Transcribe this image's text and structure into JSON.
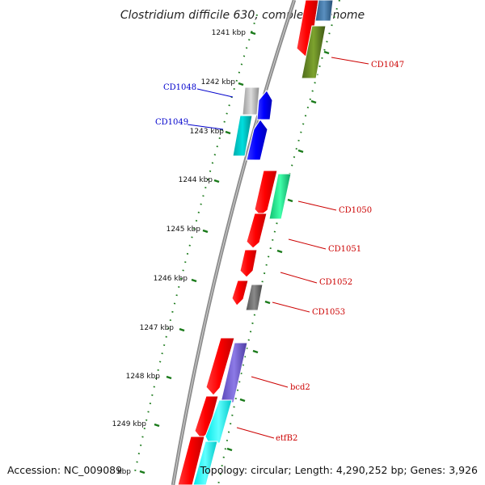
{
  "title": "Clostridium difficile 630, complete genome",
  "footer": {
    "accession": "Accession: NC_009089",
    "topology": "Topology: circular; Length: 4,290,252 bp; Genes: 3,926"
  },
  "colors": {
    "tick": "#1a7a1a",
    "backbone": "#808080",
    "label_red": "#cc0000",
    "label_blue": "#0000cc"
  },
  "ticks": [
    "1241 kbp",
    "1242 kbp",
    "1243 kbp",
    "1244 kbp",
    "1245 kbp",
    "1246 kbp",
    "1247 kbp",
    "1248 kbp",
    "1249 kbp",
    "kbp"
  ],
  "gene_labels": [
    {
      "text": "CD1047",
      "color": "#cc0000"
    },
    {
      "text": "CD1048",
      "color": "#0000cc"
    },
    {
      "text": "CD1049",
      "color": "#0000cc"
    },
    {
      "text": "CD1050",
      "color": "#cc0000"
    },
    {
      "text": "CD1051",
      "color": "#cc0000"
    },
    {
      "text": "CD1052",
      "color": "#cc0000"
    },
    {
      "text": "CD1053",
      "color": "#cc0000"
    },
    {
      "text": "bcd2",
      "color": "#cc0000"
    },
    {
      "text": "etfB2",
      "color": "#cc0000"
    }
  ]
}
